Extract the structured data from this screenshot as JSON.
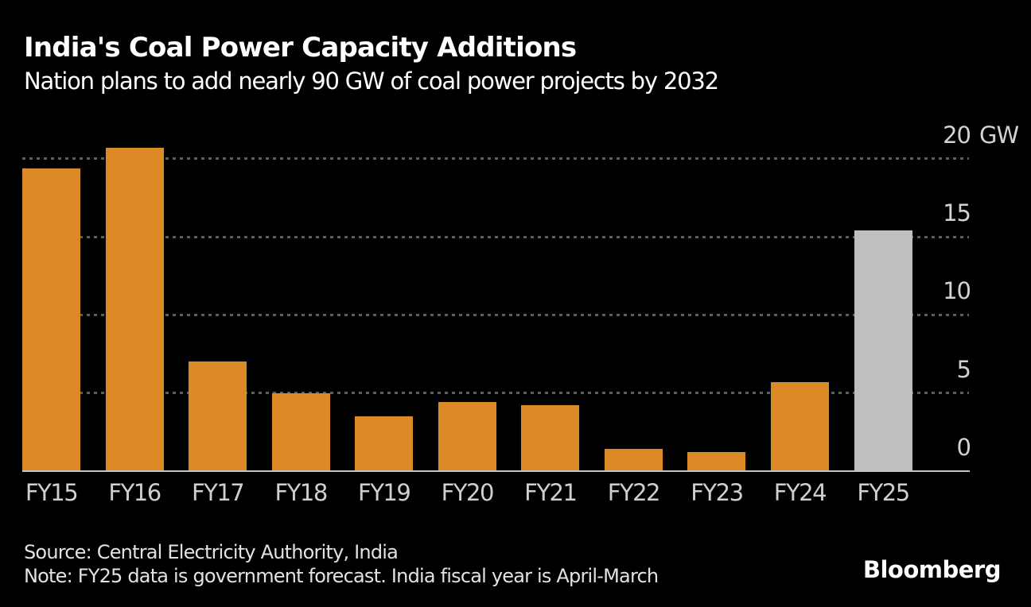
{
  "header": {
    "title": "India's Coal Power Capacity Additions",
    "subtitle": "Nation plans to add nearly 90 GW of coal power projects by 2032"
  },
  "chart_data": {
    "type": "bar",
    "title": "India's Coal Power Capacity Additions",
    "subtitle": "Nation plans to add nearly 90 GW of coal power projects by 2032",
    "categories": [
      "FY15",
      "FY16",
      "FY17",
      "FY18",
      "FY19",
      "FY20",
      "FY21",
      "FY22",
      "FY23",
      "FY24",
      "FY25"
    ],
    "values": [
      19.4,
      20.7,
      7.0,
      5.0,
      3.5,
      4.4,
      4.2,
      1.4,
      1.2,
      5.7,
      15.4
    ],
    "forecast_flags": [
      false,
      false,
      false,
      false,
      false,
      false,
      false,
      false,
      false,
      false,
      true
    ],
    "unit": "GW",
    "y_ticks": [
      0,
      5,
      10,
      15,
      20
    ],
    "ylim": [
      0,
      22.3
    ],
    "grid": "horizontal-dotted",
    "legend_position": "none",
    "bar_colors": {
      "actual": "#DC8A27",
      "forecast": "#BFBFBF"
    },
    "background_color": "#000000"
  },
  "footer": {
    "source": "Source: Central Electricity Authority, India",
    "note": "Note: FY25 data is government forecast. India fiscal year is April-March",
    "brand": "Bloomberg"
  }
}
